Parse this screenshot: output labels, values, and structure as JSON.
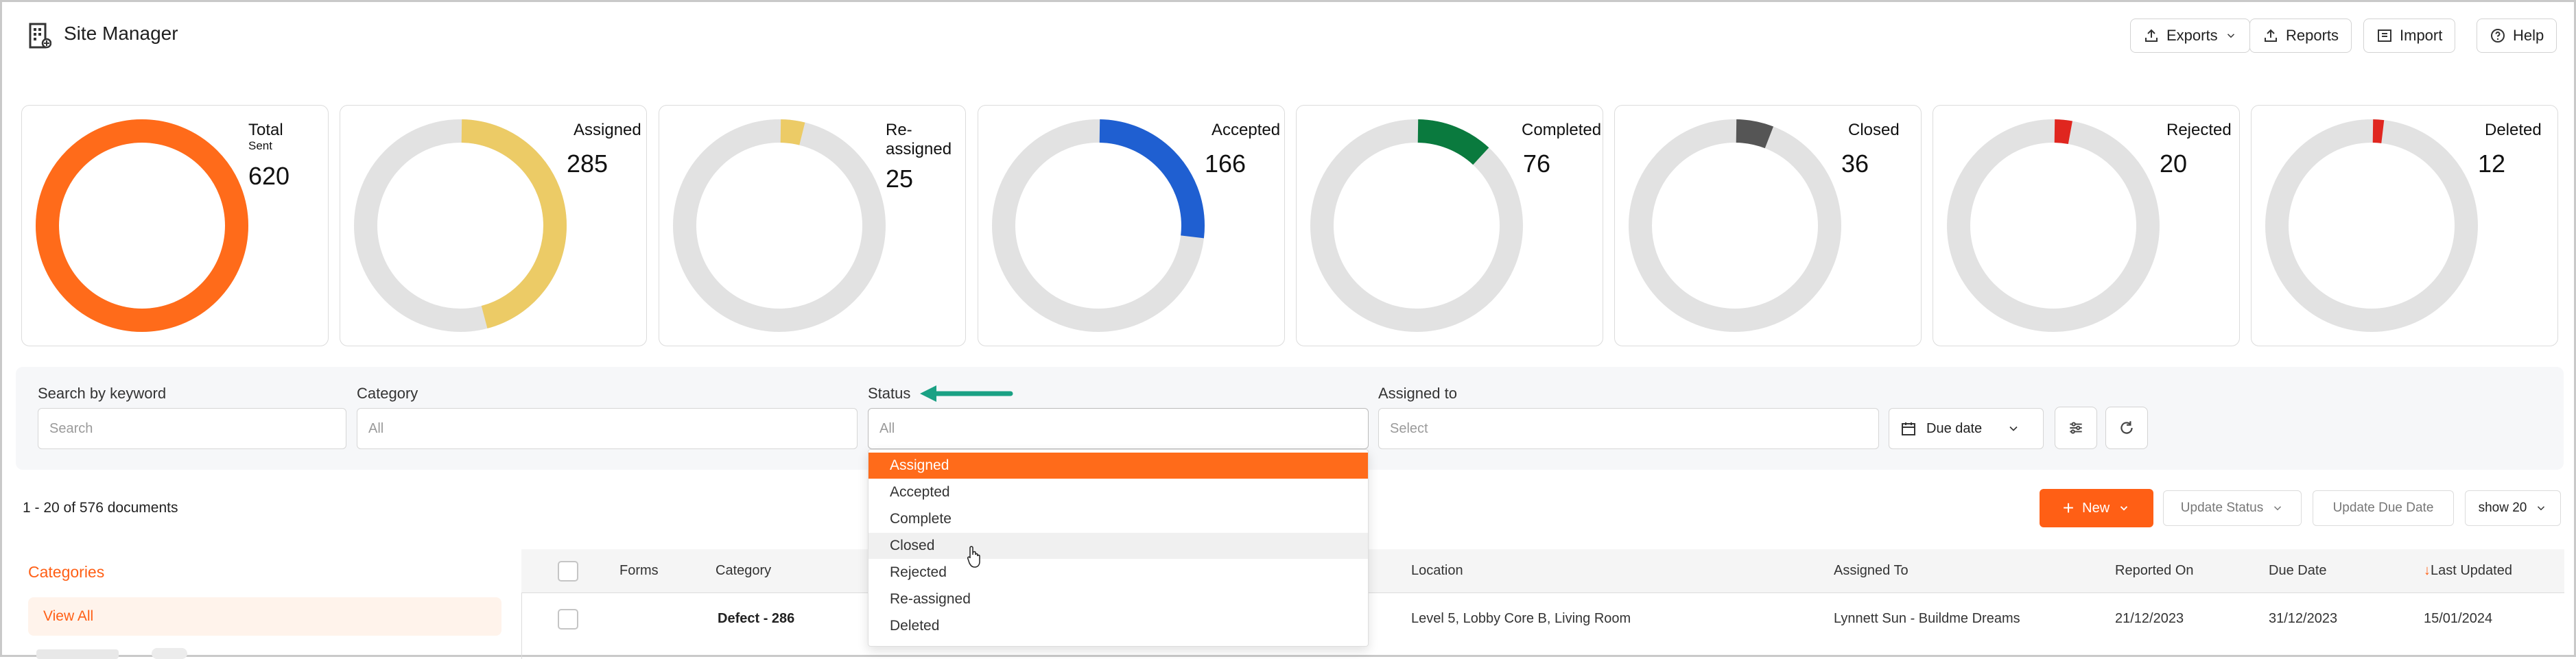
{
  "header": {
    "app_title": "Site Manager",
    "buttons": [
      {
        "label": "Exports"
      },
      {
        "label": "Reports"
      },
      {
        "label": "Import"
      },
      {
        "label": "Help"
      }
    ]
  },
  "stats": [
    {
      "label": "Total",
      "sublabel": "Sent",
      "value": "620",
      "fraction": 1.0,
      "color": "#ff6b1a"
    },
    {
      "label": "Assigned",
      "value": "285",
      "fraction": 0.46,
      "color": "#eccb66"
    },
    {
      "label": "Re-\nassigned",
      "value": "25",
      "fraction": 0.04,
      "color": "#eccb66"
    },
    {
      "label": "Accepted",
      "value": "166",
      "fraction": 0.27,
      "color": "#1f5fd1"
    },
    {
      "label": "Completed",
      "value": "76",
      "fraction": 0.12,
      "color": "#0a7a3e"
    },
    {
      "label": "Closed",
      "value": "36",
      "fraction": 0.06,
      "color": "#555555"
    },
    {
      "label": "Rejected",
      "value": "20",
      "fraction": 0.03,
      "color": "#e0261f"
    },
    {
      "label": "Deleted",
      "value": "12",
      "fraction": 0.02,
      "color": "#e0261f"
    }
  ],
  "filters": {
    "keyword_label": "Search by keyword",
    "keyword_placeholder": "Search",
    "category_label": "Category",
    "category_value": "All",
    "status_label": "Status",
    "status_value": "All",
    "assigned_label": "Assigned to",
    "assigned_placeholder": "Select",
    "due_date_label": "Due date"
  },
  "status_dropdown": {
    "options": [
      "Assigned",
      "Accepted",
      "Complete",
      "Closed",
      "Rejected",
      "Re-assigned",
      "Deleted"
    ],
    "selected_index": 0,
    "hovered_index": 3
  },
  "documents": {
    "count_text": "1 - 20 of 576 documents",
    "new_label": "New",
    "update_status_label": "Update Status",
    "update_due_label": "Update Due Date",
    "show_label": "show 20"
  },
  "categories": {
    "heading": "Categories",
    "view_all": "View All"
  },
  "table": {
    "columns": [
      "Forms",
      "Category",
      "Location",
      "Assigned To",
      "Reported On",
      "Due Date",
      "Last Updated"
    ],
    "sort_arrow": "↓",
    "rows": [
      {
        "category": "Defect - 286",
        "location": "Level 5, Lobby Core B, Living Room",
        "assigned_to": "Lynnett Sun - Buildme Dreams",
        "reported_on": "21/12/2023",
        "due_date": "31/12/2023",
        "last_updated": "15/01/2024"
      }
    ]
  },
  "colors": {
    "accent": "#ff5f15",
    "ring_track": "#e2e2e2",
    "arrow": "#1aa184"
  }
}
